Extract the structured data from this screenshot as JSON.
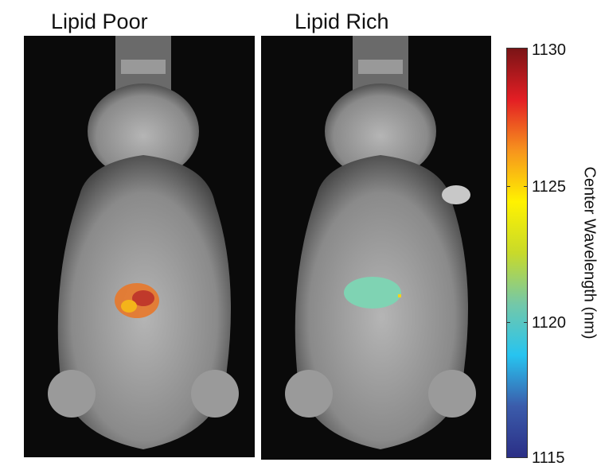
{
  "panels": [
    {
      "title": "Lipid Poor"
    },
    {
      "title": "Lipid Rich"
    }
  ],
  "colorbar": {
    "label": "Center Wavelength (nm)",
    "min": 1115,
    "max": 1130,
    "ticks": [
      "1130",
      "1125",
      "1120",
      "1115"
    ],
    "colormap": "jet",
    "colors": [
      "#2b2f86",
      "#3b5cab",
      "#27c4f0",
      "#74c8a8",
      "#c8da2a",
      "#fff200",
      "#f7941d",
      "#e31e24",
      "#7a1416"
    ]
  },
  "overlays": {
    "lipid_poor_color": "#e8782a",
    "lipid_rich_color": "#7fd3b3"
  }
}
